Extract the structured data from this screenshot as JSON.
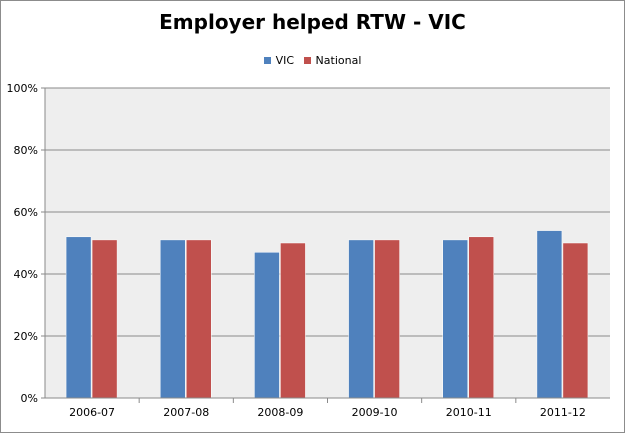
{
  "chart_data": {
    "type": "bar",
    "title": "Employer helped RTW - VIC",
    "xlabel": "",
    "ylabel": "",
    "categories": [
      "2006-07",
      "2007-08",
      "2008-09",
      "2009-10",
      "2010-11",
      "2011-12"
    ],
    "series": [
      {
        "name": "VIC",
        "color": "#4f81bd",
        "values": [
          52,
          51,
          47,
          51,
          51,
          54
        ]
      },
      {
        "name": "National",
        "color": "#c0504d",
        "values": [
          51,
          51,
          50,
          51,
          52,
          50
        ]
      }
    ],
    "ylim": [
      0,
      100
    ],
    "yticks": [
      {
        "value": 0,
        "label": "0%"
      },
      {
        "value": 20,
        "label": "20%"
      },
      {
        "value": 40,
        "label": "40%"
      },
      {
        "value": 60,
        "label": "60%"
      },
      {
        "value": 80,
        "label": "80%"
      },
      {
        "value": 100,
        "label": "100%"
      }
    ],
    "grid": true,
    "legend_position": "top",
    "plot_background": "#eeeeee"
  }
}
